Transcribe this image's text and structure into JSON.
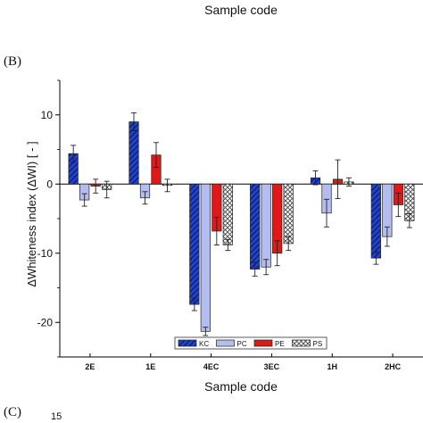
{
  "header": {
    "top_xlabel": "Sample code"
  },
  "panels": {
    "b_label": "(B)",
    "c_label": "(C)",
    "c_partial_tick": "15"
  },
  "chart_data": {
    "type": "bar",
    "title": "",
    "xlabel": "Sample code",
    "ylabel": "ΔWhiteness index  (ΔWI) [ - ]",
    "ylim": [
      -25,
      15
    ],
    "yticks": [
      10,
      0,
      -10,
      -20
    ],
    "categories": [
      "2E",
      "1E",
      "4EC",
      "3EC",
      "1H",
      "2HC"
    ],
    "series": [
      {
        "name": "KC",
        "color": "#2244cc",
        "pattern": "hatch",
        "values": [
          4.4,
          9.0,
          -17.4,
          -12.3,
          0.9,
          -10.7
        ],
        "errors": [
          1.2,
          1.3,
          0.9,
          1.0,
          1.0,
          0.9
        ]
      },
      {
        "name": "PC",
        "color": "#b3bdef",
        "pattern": "solid",
        "values": [
          -2.3,
          -2.0,
          -21.3,
          -12.0,
          -4.2,
          -7.6
        ],
        "errors": [
          0.9,
          0.9,
          0.6,
          1.1,
          2.0,
          1.4
        ]
      },
      {
        "name": "PE",
        "color": "#e01818",
        "pattern": "solid",
        "values": [
          -0.3,
          4.2,
          -6.8,
          -10.0,
          0.7,
          -3.0
        ],
        "errors": [
          1.0,
          1.8,
          2.0,
          1.8,
          2.8,
          1.7
        ]
      },
      {
        "name": "PS",
        "color": "#dddddd",
        "pattern": "crosshatch",
        "values": [
          -0.8,
          -0.2,
          -8.8,
          -8.6,
          0.3,
          -5.3
        ],
        "errors": [
          1.2,
          0.9,
          0.8,
          1.0,
          0.6,
          1.0
        ]
      }
    ],
    "legend": {
      "placement": "bottom-center"
    },
    "grid": false
  }
}
